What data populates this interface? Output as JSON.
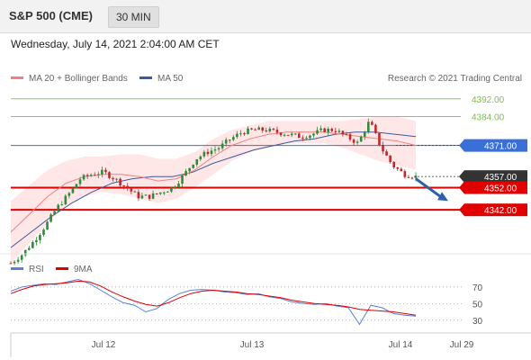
{
  "header": {
    "instrument": "S&P 500 (CME)",
    "timeframe": "30 MIN"
  },
  "date_line": "Wednesday, July 14, 2021 2:04:00 AM CET",
  "legend": {
    "ma20": "MA 20 + Bollinger Bands",
    "ma50": "MA 50",
    "credit": "Research © 2021 Trading Central",
    "rsi": "RSI",
    "ma9": "9MA"
  },
  "colors": {
    "ma20": "#f08080",
    "bands": "#ffe4e4",
    "ma50": "#3a5a9b",
    "resistance": "#7cbf4c",
    "pivot": "#3a6fd8",
    "support": "#e00000",
    "last": "#333333",
    "arrow": "#2f5fa8",
    "rsi": "#5b7fd8",
    "rsi_ma": "#e00000",
    "candle_up": "#2e8b3a",
    "candle_down": "#c0282d"
  },
  "chart_data": [
    {
      "type": "candlestick",
      "title": "",
      "ylim": [
        4321,
        4398
      ],
      "x_labels": [
        "Jul 12",
        "Jul 13",
        "Jul 14",
        "Jul 29"
      ],
      "levels": [
        {
          "value": 4392.0,
          "label": "4392.00",
          "kind": "resistance"
        },
        {
          "value": 4384.0,
          "label": "4384.00",
          "kind": "resistance"
        },
        {
          "value": 4371.0,
          "label": "4371.00",
          "kind": "pivot"
        },
        {
          "value": 4357.0,
          "label": "4357.00",
          "kind": "last"
        },
        {
          "value": 4352.0,
          "label": "4352.00",
          "kind": "support"
        },
        {
          "value": 4342.0,
          "label": "4342.00",
          "kind": "support"
        }
      ],
      "price_path": [
        4318,
        4322,
        4328,
        4335,
        4343,
        4349,
        4356,
        4358,
        4359,
        4356,
        4352,
        4348,
        4348,
        4350,
        4352,
        4358,
        4365,
        4368,
        4370,
        4374,
        4377,
        4378,
        4378,
        4377,
        4376,
        4375,
        4376,
        4378,
        4378,
        4375,
        4372,
        4382,
        4370,
        4362,
        4358,
        4357
      ],
      "bollinger_center": [
        4332,
        4340,
        4348,
        4354,
        4357,
        4358,
        4358,
        4357,
        4355,
        4356,
        4360,
        4366,
        4371,
        4374,
        4376,
        4377,
        4377,
        4377,
        4376,
        4375,
        4374,
        4373,
        4371
      ],
      "bollinger_width": [
        14,
        13,
        12,
        10,
        9,
        8,
        9,
        10,
        10,
        9,
        8,
        8,
        7,
        6,
        6,
        5,
        5,
        5,
        6,
        8,
        10,
        11,
        11
      ],
      "ma50": [
        4325,
        4332,
        4339,
        4345,
        4350,
        4354,
        4356,
        4357,
        4357,
        4359,
        4363,
        4366,
        4369,
        4371,
        4373,
        4374,
        4376,
        4377,
        4377,
        4376,
        4375
      ],
      "forecast_arrow": {
        "from": 4356,
        "to": 4346
      }
    },
    {
      "type": "line",
      "title": "RSI",
      "ylim": [
        20,
        85
      ],
      "y_ticks": [
        70,
        50,
        30
      ],
      "rsi": [
        65,
        70,
        72,
        74,
        73,
        76,
        79,
        74,
        66,
        58,
        51,
        48,
        40,
        44,
        55,
        62,
        66,
        67,
        66,
        64,
        63,
        61,
        62,
        58,
        56,
        52,
        50,
        49,
        50,
        47,
        45,
        25,
        48,
        45,
        38,
        36,
        35
      ],
      "rsi_ma": [
        62,
        67,
        71,
        73,
        74,
        75,
        77,
        76,
        71,
        64,
        58,
        53,
        49,
        47,
        51,
        57,
        62,
        65,
        66,
        65,
        64,
        62,
        61,
        59,
        57,
        54,
        52,
        50,
        49,
        48,
        46,
        43,
        42,
        41,
        40,
        38,
        36
      ]
    }
  ]
}
